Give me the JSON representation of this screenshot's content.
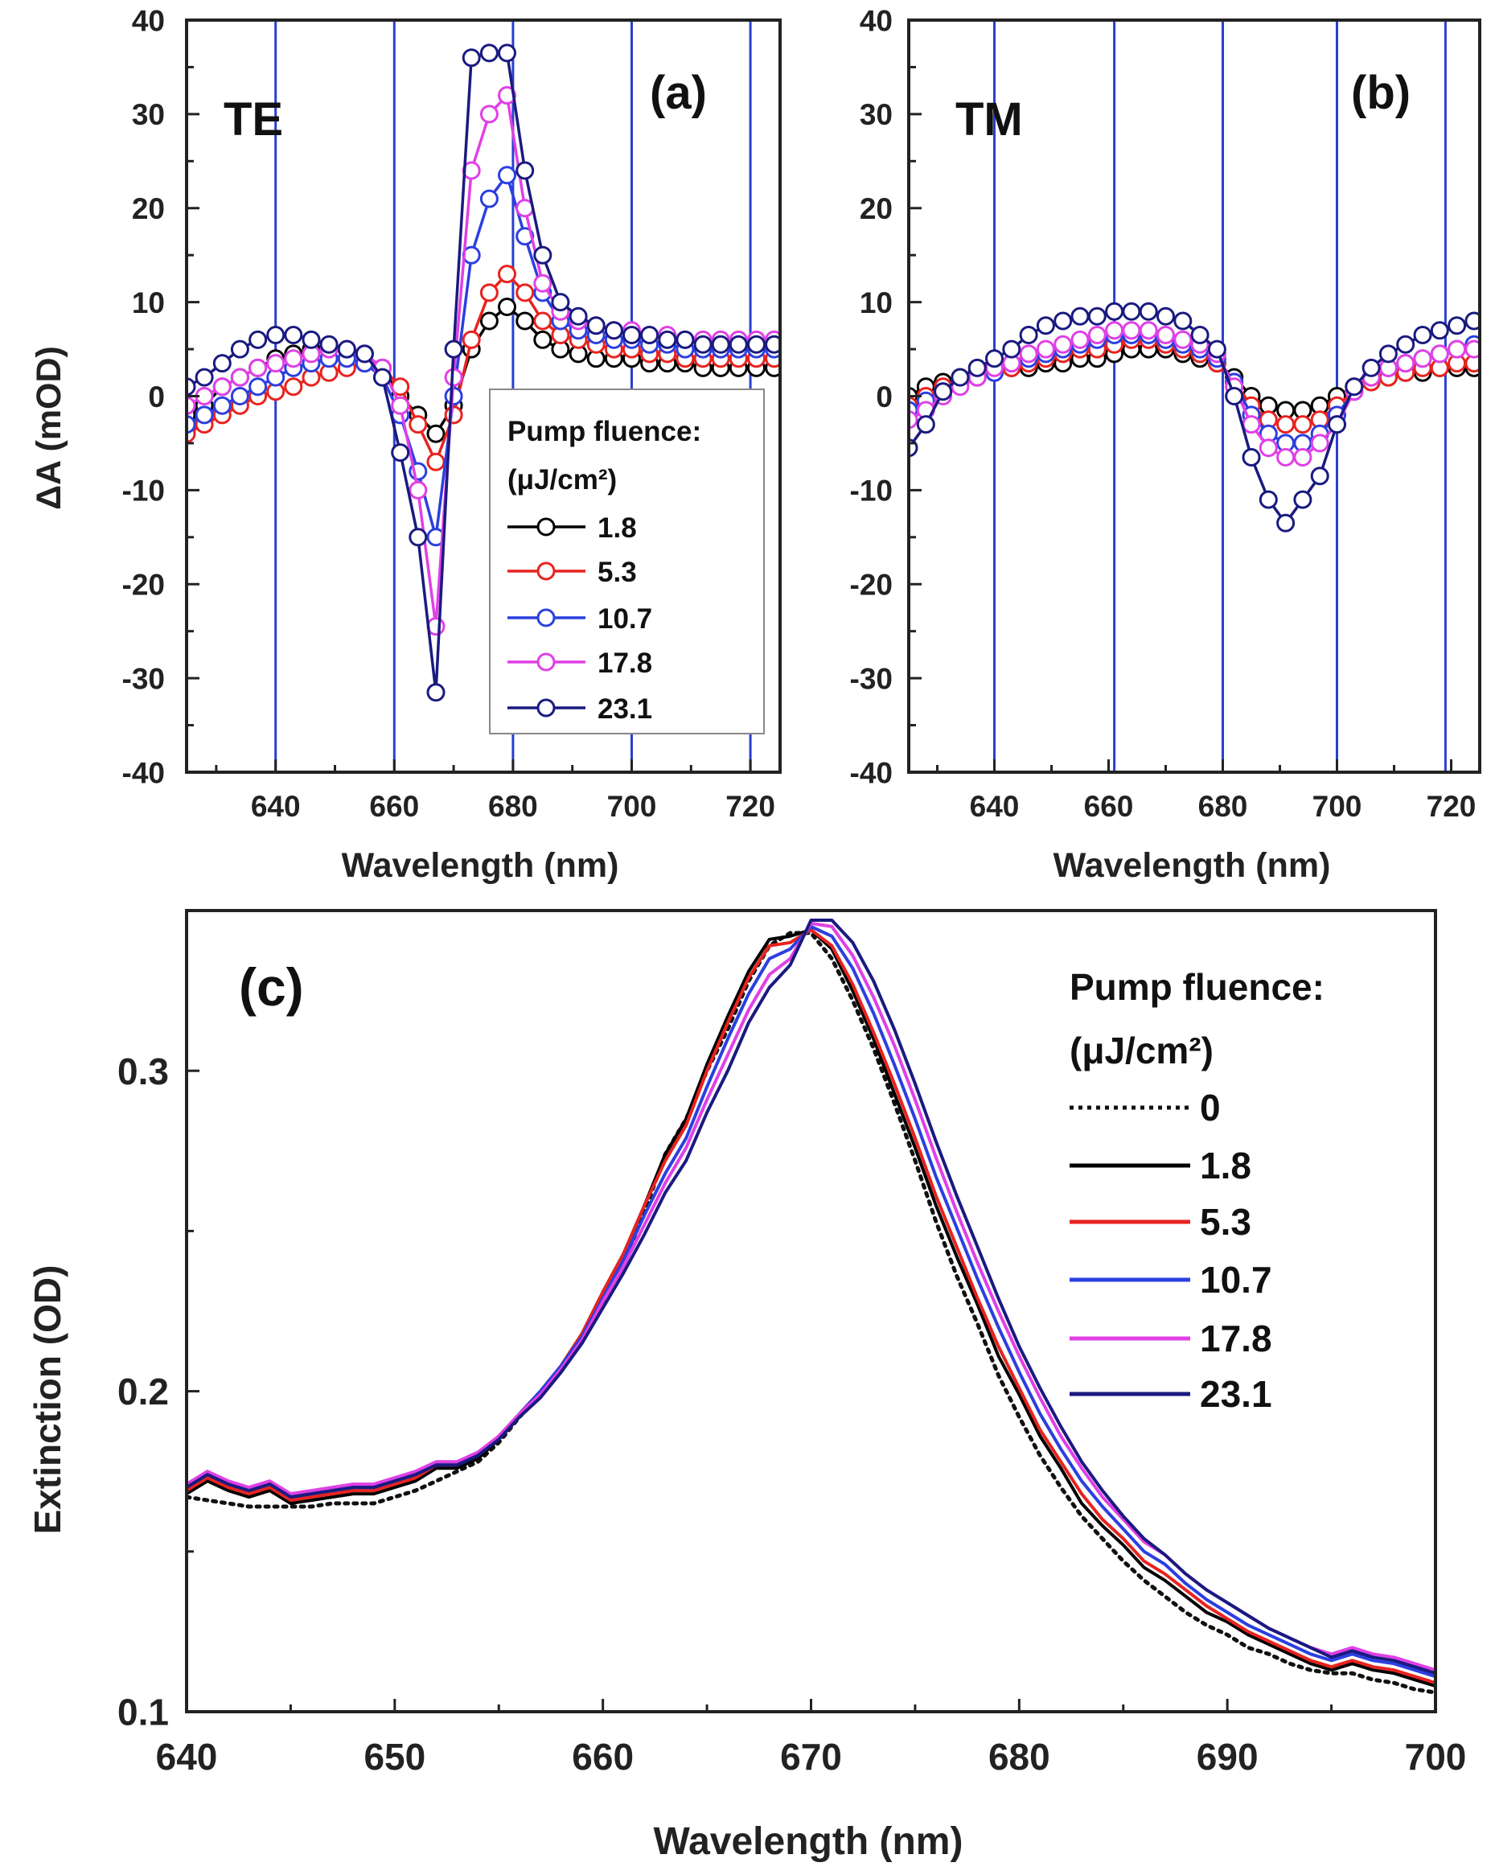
{
  "chart_data": [
    {
      "id": "a",
      "type": "line",
      "panel_label": "(a)",
      "polarization": "TE",
      "xlabel": "Wavelength (nm)",
      "ylabel": "ΔA (mOD)",
      "xlim": [
        625,
        725
      ],
      "ylim": [
        -40,
        40
      ],
      "xticks": [
        640,
        660,
        680,
        700,
        720
      ],
      "yticks": [
        -40,
        -30,
        -20,
        -10,
        0,
        10,
        20,
        30,
        40
      ],
      "vlines": [
        640,
        660,
        680,
        700,
        720
      ],
      "markers": "open-circle",
      "legend": {
        "title": "Pump fluence:",
        "units": "(μJ/cm²)",
        "position": "lower-right"
      },
      "x": [
        625,
        628,
        631,
        634,
        637,
        640,
        643,
        646,
        649,
        652,
        655,
        658,
        661,
        664,
        667,
        670,
        673,
        676,
        679,
        682,
        685,
        688,
        691,
        694,
        697,
        700,
        703,
        706,
        709,
        712,
        715,
        718,
        721,
        724
      ],
      "series": [
        {
          "name": "1.8",
          "color": "#000000",
          "values": [
            -2,
            -1,
            1,
            2,
            3,
            4,
            4.5,
            5,
            5,
            5,
            4.5,
            3,
            0,
            -2,
            -4,
            -1,
            5,
            8,
            9.5,
            8,
            6,
            5,
            4.5,
            4,
            4,
            4,
            3.5,
            3.5,
            3.5,
            3,
            3,
            3,
            3,
            3
          ]
        },
        {
          "name": "5.3",
          "color": "#e8231f",
          "values": [
            -4,
            -3,
            -2,
            -1,
            0,
            0.5,
            1,
            2,
            2.5,
            3,
            3.5,
            3,
            1,
            -3,
            -7,
            -2,
            6,
            11,
            13,
            11,
            8,
            6.5,
            6,
            5.5,
            5,
            5,
            4.5,
            4.5,
            4,
            4,
            4,
            4,
            4,
            4
          ]
        },
        {
          "name": "10.7",
          "color": "#2b3fe0",
          "values": [
            -3,
            -2,
            -1,
            0,
            1,
            2,
            3,
            3.5,
            4,
            4,
            3.5,
            2,
            -2,
            -8,
            -15,
            0,
            15,
            21,
            23.5,
            17,
            11,
            8,
            7,
            6.5,
            6,
            6,
            5.5,
            5.5,
            5,
            5,
            5,
            5,
            5,
            5
          ]
        },
        {
          "name": "17.8",
          "color": "#e040e6",
          "values": [
            -1,
            0,
            1,
            2,
            3,
            3.5,
            4,
            4.5,
            5,
            5,
            4.5,
            3,
            -1,
            -10,
            -24.5,
            2,
            24,
            30,
            32,
            20,
            12,
            9,
            8,
            7.5,
            7,
            7,
            6.5,
            6.5,
            6,
            6,
            6,
            6,
            6,
            6
          ]
        },
        {
          "name": "23.1",
          "color": "#1a1a80",
          "values": [
            1,
            2,
            3.5,
            5,
            6,
            6.5,
            6.5,
            6,
            5.5,
            5,
            4.5,
            2,
            -6,
            -15,
            -31.5,
            5,
            36,
            36.5,
            36.5,
            24,
            15,
            10,
            8.5,
            7.5,
            7,
            6.5,
            6.5,
            6,
            6,
            5.5,
            5.5,
            5.5,
            5.5,
            5.5
          ]
        }
      ]
    },
    {
      "id": "b",
      "type": "line",
      "panel_label": "(b)",
      "polarization": "TM",
      "xlabel": "Wavelength (nm)",
      "ylabel": "",
      "xlim": [
        625,
        725
      ],
      "ylim": [
        -40,
        40
      ],
      "xticks": [
        640,
        660,
        680,
        700,
        720
      ],
      "yticks": [
        -40,
        -30,
        -20,
        -10,
        0,
        10,
        20,
        30,
        40
      ],
      "vlines": [
        640,
        661,
        680,
        700,
        719
      ],
      "markers": "open-circle",
      "x": [
        625,
        628,
        631,
        634,
        637,
        640,
        643,
        646,
        649,
        652,
        655,
        658,
        661,
        664,
        667,
        670,
        673,
        676,
        679,
        682,
        685,
        688,
        691,
        694,
        697,
        700,
        703,
        706,
        709,
        712,
        715,
        718,
        721,
        724
      ],
      "series": [
        {
          "name": "1.8",
          "color": "#000000",
          "values": [
            0,
            1,
            1.5,
            2,
            2.5,
            2.5,
            3,
            3,
            3.5,
            3.5,
            4,
            4,
            4.5,
            5,
            5,
            5,
            4.5,
            4,
            3.5,
            2,
            0,
            -1,
            -1.5,
            -1.5,
            -1,
            0,
            1,
            1.5,
            2,
            2.5,
            2.5,
            3,
            3,
            3
          ]
        },
        {
          "name": "5.3",
          "color": "#e8231f",
          "values": [
            -1,
            0,
            1,
            1.5,
            2,
            2.5,
            3,
            3.5,
            4,
            4.5,
            5,
            5,
            5.5,
            6,
            6,
            5.5,
            5,
            4.5,
            3.5,
            1.5,
            -1,
            -2.5,
            -3,
            -3,
            -2.5,
            -1,
            0.5,
            1.5,
            2,
            2.5,
            3,
            3,
            3.5,
            3.5
          ]
        },
        {
          "name": "10.7",
          "color": "#2b3fe0",
          "values": [
            -1.5,
            -0.5,
            0.5,
            1.5,
            2,
            2.5,
            3.5,
            4,
            4.5,
            5,
            5.5,
            6,
            6.5,
            6.5,
            6.5,
            6,
            5.5,
            5,
            4,
            1.5,
            -2,
            -4,
            -5,
            -5,
            -4,
            -2,
            0.5,
            2,
            3,
            3.5,
            4,
            4.5,
            5,
            5.5
          ]
        },
        {
          "name": "17.8",
          "color": "#e040e6",
          "values": [
            -2.5,
            -1.5,
            0,
            1,
            2,
            3,
            3.5,
            4.5,
            5,
            5.5,
            6,
            6.5,
            7,
            7,
            7,
            6.5,
            6,
            5.5,
            4.5,
            1,
            -3,
            -5.5,
            -6.5,
            -6.5,
            -5,
            -3,
            0.5,
            2,
            3,
            3.5,
            4,
            4.5,
            5,
            5
          ]
        },
        {
          "name": "23.1",
          "color": "#1a1a80",
          "values": [
            -5.5,
            -3,
            0.5,
            2,
            3,
            4,
            5,
            6.5,
            7.5,
            8,
            8.5,
            8.5,
            9,
            9,
            9,
            8.5,
            8,
            6.5,
            5,
            0,
            -6.5,
            -11,
            -13.5,
            -11,
            -8.5,
            -3,
            1,
            3,
            4.5,
            5.5,
            6.5,
            7,
            7.5,
            8
          ]
        }
      ]
    },
    {
      "id": "c",
      "type": "line",
      "panel_label": "(c)",
      "xlabel": "Wavelength (nm)",
      "ylabel": "Extinction (OD)",
      "xlim": [
        640,
        700
      ],
      "ylim": [
        0.1,
        0.35
      ],
      "xticks": [
        640,
        650,
        660,
        670,
        680,
        690,
        700
      ],
      "yticks": [
        0.1,
        0.2,
        0.3
      ],
      "legend": {
        "title": "Pump fluence:",
        "units": "(μJ/cm²)",
        "position": "right"
      },
      "x": [
        640,
        641,
        642,
        643,
        644,
        645,
        646,
        647,
        648,
        649,
        650,
        651,
        652,
        653,
        654,
        655,
        656,
        657,
        658,
        659,
        660,
        661,
        662,
        663,
        664,
        665,
        666,
        667,
        668,
        669,
        670,
        671,
        672,
        673,
        674,
        675,
        676,
        677,
        678,
        679,
        680,
        681,
        682,
        683,
        684,
        685,
        686,
        687,
        688,
        689,
        690,
        691,
        692,
        693,
        694,
        695,
        696,
        697,
        698,
        699,
        700
      ],
      "series": [
        {
          "name": "0",
          "color": "#111111",
          "style": "dotted",
          "values": [
            0.167,
            0.166,
            0.165,
            0.164,
            0.164,
            0.164,
            0.164,
            0.165,
            0.165,
            0.165,
            0.167,
            0.169,
            0.172,
            0.175,
            0.178,
            0.184,
            0.192,
            0.199,
            0.207,
            0.216,
            0.228,
            0.24,
            0.256,
            0.274,
            0.285,
            0.3,
            0.313,
            0.328,
            0.339,
            0.343,
            0.343,
            0.335,
            0.322,
            0.307,
            0.29,
            0.272,
            0.253,
            0.236,
            0.221,
            0.205,
            0.192,
            0.18,
            0.17,
            0.161,
            0.154,
            0.147,
            0.141,
            0.136,
            0.131,
            0.127,
            0.124,
            0.12,
            0.118,
            0.115,
            0.113,
            0.112,
            0.112,
            0.11,
            0.109,
            0.107,
            0.106
          ]
        },
        {
          "name": "1.8",
          "color": "#000000",
          "values": [
            0.168,
            0.172,
            0.169,
            0.167,
            0.169,
            0.165,
            0.166,
            0.167,
            0.168,
            0.168,
            0.17,
            0.172,
            0.176,
            0.176,
            0.179,
            0.185,
            0.193,
            0.2,
            0.208,
            0.218,
            0.231,
            0.243,
            0.258,
            0.274,
            0.285,
            0.302,
            0.317,
            0.331,
            0.341,
            0.342,
            0.344,
            0.338,
            0.325,
            0.31,
            0.293,
            0.276,
            0.258,
            0.242,
            0.227,
            0.211,
            0.199,
            0.186,
            0.176,
            0.165,
            0.158,
            0.152,
            0.145,
            0.141,
            0.136,
            0.131,
            0.128,
            0.124,
            0.121,
            0.118,
            0.115,
            0.113,
            0.115,
            0.113,
            0.112,
            0.11,
            0.108
          ]
        },
        {
          "name": "5.3",
          "color": "#e8231f",
          "values": [
            0.169,
            0.173,
            0.17,
            0.168,
            0.17,
            0.166,
            0.167,
            0.168,
            0.169,
            0.169,
            0.171,
            0.173,
            0.177,
            0.177,
            0.18,
            0.186,
            0.193,
            0.2,
            0.208,
            0.218,
            0.231,
            0.243,
            0.258,
            0.272,
            0.283,
            0.3,
            0.315,
            0.329,
            0.339,
            0.34,
            0.344,
            0.339,
            0.327,
            0.312,
            0.296,
            0.279,
            0.261,
            0.245,
            0.229,
            0.214,
            0.201,
            0.188,
            0.178,
            0.168,
            0.16,
            0.154,
            0.147,
            0.143,
            0.138,
            0.133,
            0.129,
            0.125,
            0.122,
            0.119,
            0.116,
            0.114,
            0.116,
            0.114,
            0.113,
            0.111,
            0.109
          ]
        },
        {
          "name": "10.7",
          "color": "#2b3fe0",
          "values": [
            0.17,
            0.174,
            0.171,
            0.169,
            0.171,
            0.167,
            0.168,
            0.169,
            0.17,
            0.17,
            0.172,
            0.174,
            0.177,
            0.177,
            0.18,
            0.186,
            0.193,
            0.2,
            0.208,
            0.217,
            0.229,
            0.241,
            0.255,
            0.268,
            0.279,
            0.295,
            0.31,
            0.324,
            0.335,
            0.338,
            0.345,
            0.342,
            0.332,
            0.318,
            0.302,
            0.285,
            0.267,
            0.251,
            0.235,
            0.22,
            0.206,
            0.193,
            0.182,
            0.172,
            0.164,
            0.157,
            0.15,
            0.146,
            0.14,
            0.135,
            0.131,
            0.127,
            0.124,
            0.121,
            0.118,
            0.116,
            0.118,
            0.116,
            0.115,
            0.113,
            0.111
          ]
        },
        {
          "name": "17.8",
          "color": "#e040e6",
          "values": [
            0.171,
            0.175,
            0.172,
            0.17,
            0.172,
            0.168,
            0.169,
            0.17,
            0.171,
            0.171,
            0.173,
            0.175,
            0.178,
            0.178,
            0.181,
            0.186,
            0.193,
            0.199,
            0.207,
            0.216,
            0.228,
            0.239,
            0.252,
            0.265,
            0.276,
            0.291,
            0.305,
            0.319,
            0.33,
            0.335,
            0.346,
            0.345,
            0.336,
            0.323,
            0.308,
            0.291,
            0.273,
            0.256,
            0.24,
            0.225,
            0.211,
            0.198,
            0.186,
            0.176,
            0.167,
            0.16,
            0.153,
            0.149,
            0.143,
            0.138,
            0.134,
            0.13,
            0.126,
            0.123,
            0.12,
            0.118,
            0.12,
            0.118,
            0.117,
            0.115,
            0.113
          ]
        },
        {
          "name": "23.1",
          "color": "#1a1a80",
          "values": [
            0.17,
            0.174,
            0.171,
            0.169,
            0.171,
            0.167,
            0.168,
            0.169,
            0.17,
            0.17,
            0.172,
            0.174,
            0.177,
            0.177,
            0.18,
            0.185,
            0.192,
            0.198,
            0.206,
            0.215,
            0.226,
            0.237,
            0.249,
            0.262,
            0.272,
            0.287,
            0.3,
            0.315,
            0.326,
            0.333,
            0.347,
            0.347,
            0.34,
            0.328,
            0.313,
            0.296,
            0.278,
            0.261,
            0.245,
            0.229,
            0.214,
            0.201,
            0.189,
            0.178,
            0.169,
            0.161,
            0.154,
            0.149,
            0.143,
            0.138,
            0.134,
            0.13,
            0.126,
            0.123,
            0.12,
            0.117,
            0.119,
            0.117,
            0.116,
            0.114,
            0.112
          ]
        }
      ]
    }
  ]
}
